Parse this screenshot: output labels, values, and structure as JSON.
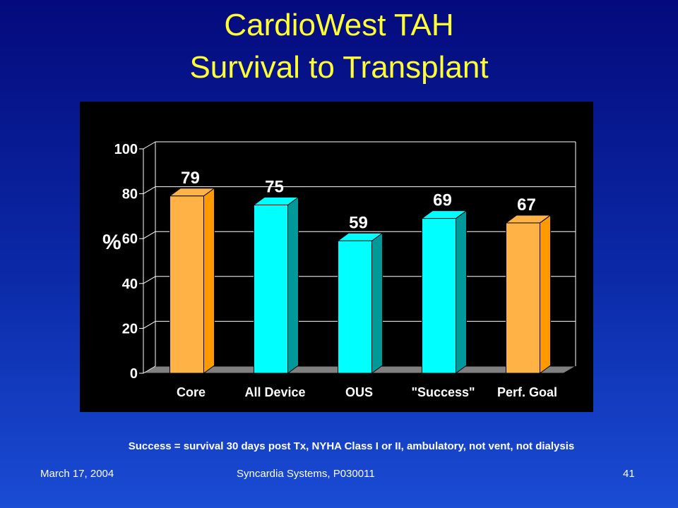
{
  "slide": {
    "title_line1": "CardioWest TAH",
    "title_line2": "Survival to Transplant",
    "footnote": "Success = survival 30 days post Tx, NYHA Class I or II, ambulatory, not vent, not dialysis",
    "footer": {
      "date": "March 17, 2004",
      "company": "Syncardia Systems, P030011",
      "page": "41"
    }
  },
  "colors": {
    "orange": "#ffb347",
    "orange_side": "#ff9900",
    "cyan": "#00ffff",
    "cyan_side": "#009999",
    "floor": "#808080",
    "grid": "#ffffff",
    "text": "#ffffff"
  },
  "chart_data": {
    "type": "bar",
    "title": "CardioWest TAH Survival to Transplant",
    "ylabel": "%",
    "xlabel": "",
    "ylim": [
      0,
      100
    ],
    "yticks": [
      0,
      20,
      40,
      60,
      80,
      100
    ],
    "grid": true,
    "categories": [
      "Core",
      "All Device",
      "OUS",
      "\"Success\"",
      "Perf. Goal"
    ],
    "values": [
      79,
      75,
      59,
      69,
      67
    ],
    "value_labels": [
      "79",
      "75",
      "59",
      "69",
      "67"
    ],
    "bar_colors": [
      "orange",
      "cyan",
      "cyan",
      "cyan",
      "orange"
    ]
  }
}
